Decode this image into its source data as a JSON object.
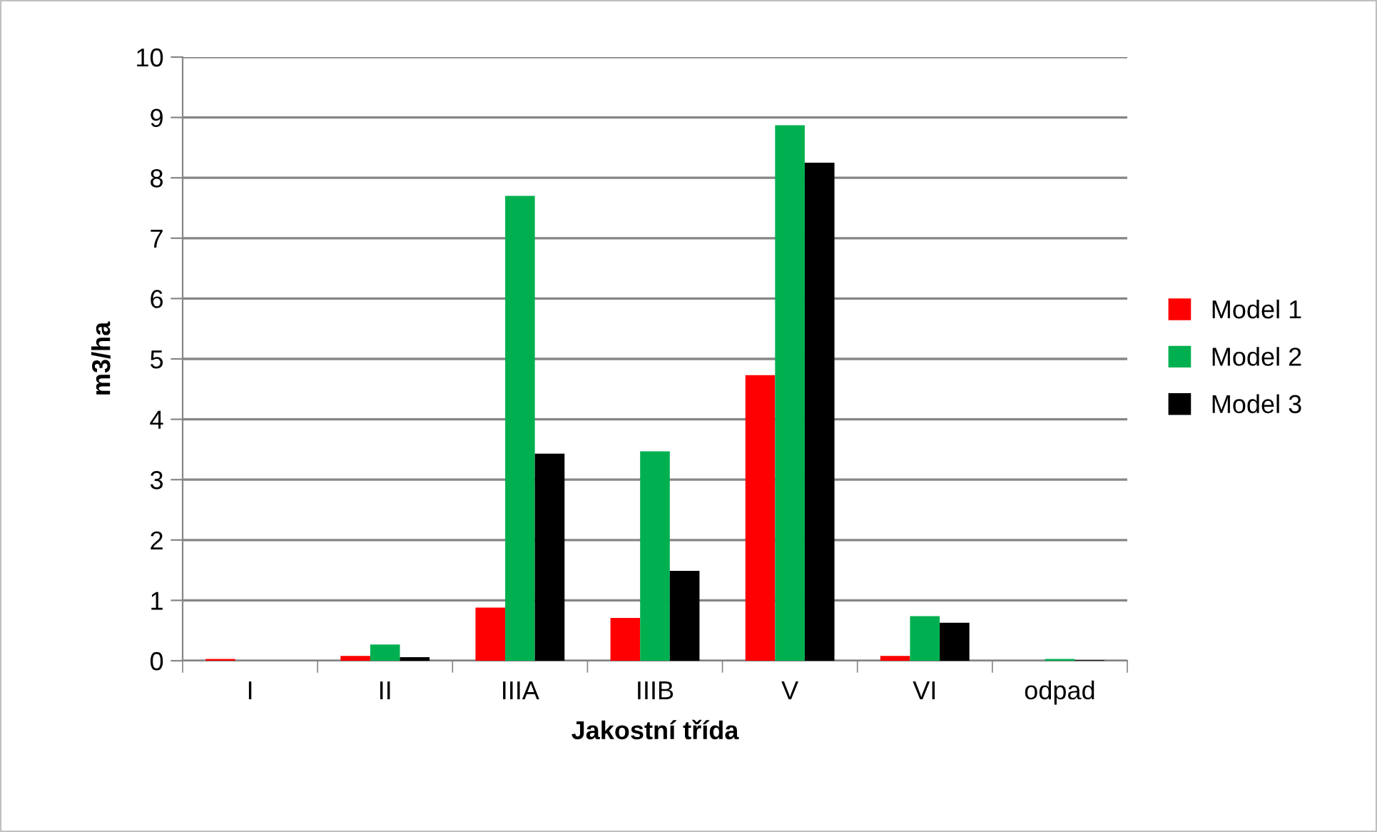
{
  "chart_data": {
    "type": "bar",
    "xlabel": "Jakostní třída",
    "ylabel": "m3/ha",
    "categories": [
      "I",
      "II",
      "IIIA",
      "IIIB",
      "V",
      "VI",
      "odpad"
    ],
    "series": [
      {
        "name": "Model 1",
        "color": "#ff0000",
        "values": [
          0.03,
          0.08,
          0.88,
          0.71,
          4.73,
          0.08,
          0
        ]
      },
      {
        "name": "Model 2",
        "color": "#00b050",
        "values": [
          0,
          0.27,
          7.7,
          3.47,
          8.87,
          0.74,
          0.03
        ]
      },
      {
        "name": "Model 3",
        "color": "#000000",
        "values": [
          0,
          0.06,
          3.43,
          1.49,
          8.25,
          0.63,
          0.01
        ]
      }
    ],
    "ylim": [
      0,
      10
    ],
    "yticks": [
      0,
      1,
      2,
      3,
      4,
      5,
      6,
      7,
      8,
      9,
      10
    ],
    "grid": "y",
    "legend": "right"
  }
}
